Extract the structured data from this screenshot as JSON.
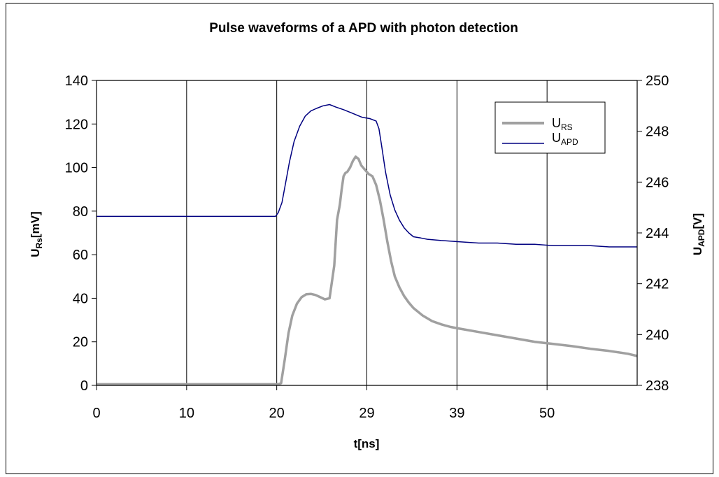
{
  "chart_data": {
    "type": "line",
    "title": "Pulse waveforms of a APD with photon detection",
    "xlabel": {
      "main": "t[ns]"
    },
    "ylabel_left": {
      "main": "U",
      "sub": "Rs",
      "tail": "[mV]"
    },
    "ylabel_right": {
      "main": "U",
      "sub": "APD",
      "tail": "[V]"
    },
    "x_range": [
      0,
      58
    ],
    "x_tick_labels": [
      "0",
      "10",
      "20",
      "29",
      "39",
      "50"
    ],
    "y_left_range": [
      0,
      140
    ],
    "y_left_ticks": [
      0,
      20,
      40,
      60,
      80,
      100,
      120,
      140
    ],
    "y_right_range": [
      238,
      250
    ],
    "y_right_ticks": [
      238,
      240,
      242,
      244,
      246,
      248,
      250
    ],
    "grid": "vertical",
    "legend_position": "top-right",
    "series": [
      {
        "name_main": "U",
        "name_sub": "RS",
        "axis": "left",
        "color": "#a0a0a0",
        "x": [
          0,
          19.5,
          19.8,
          20.2,
          20.6,
          21.0,
          21.5,
          22.0,
          22.5,
          23.0,
          23.5,
          24.0,
          24.5,
          25.0,
          25.5,
          25.8,
          26.1,
          26.3,
          26.5,
          26.7,
          26.9,
          27.2,
          27.5,
          27.8,
          28.1,
          28.4,
          28.8,
          29.2,
          29.6,
          30.0,
          30.4,
          30.8,
          31.2,
          31.6,
          32.0,
          32.5,
          33.0,
          33.5,
          34.0,
          35.0,
          36.0,
          37.0,
          38.0,
          39.0,
          41.0,
          43.0,
          45.0,
          47.0,
          49.0,
          51.0,
          53.0,
          55.0,
          57.0,
          58.0
        ],
        "y": [
          0.5,
          0.5,
          1.0,
          12.0,
          24.0,
          32.0,
          37.5,
          40.5,
          41.8,
          42.0,
          41.5,
          40.5,
          39.5,
          40.0,
          55.0,
          76.0,
          83.0,
          90.0,
          96.0,
          97.5,
          98.0,
          100.0,
          103.0,
          105.0,
          104.0,
          101.0,
          99.0,
          97.0,
          96.0,
          92.0,
          85.0,
          76.0,
          66.0,
          57.0,
          50.0,
          45.0,
          41.0,
          38.0,
          35.5,
          32.0,
          29.5,
          28.0,
          26.8,
          26.0,
          24.5,
          23.0,
          21.5,
          20.0,
          19.0,
          18.0,
          16.8,
          15.8,
          14.5,
          13.5
        ]
      },
      {
        "name_main": "U",
        "name_sub": "APD",
        "axis": "right",
        "color": "#000080",
        "x": [
          0,
          19.2,
          19.5,
          19.9,
          20.3,
          20.7,
          21.2,
          21.8,
          22.4,
          23.0,
          23.6,
          24.3,
          25.0,
          25.7,
          26.5,
          27.5,
          28.5,
          29.3,
          30.0,
          30.3,
          30.6,
          31.0,
          31.5,
          32.0,
          32.5,
          33.0,
          33.5,
          34.0,
          34.8,
          35.5,
          37.0,
          39.0,
          41.0,
          43.0,
          45.0,
          47.0,
          49.0,
          51.0,
          53.0,
          55.0,
          58.0
        ],
        "y": [
          244.65,
          244.65,
          244.8,
          245.2,
          246.0,
          246.8,
          247.6,
          248.2,
          248.6,
          248.8,
          248.9,
          249.0,
          249.05,
          248.95,
          248.85,
          248.7,
          248.55,
          248.5,
          248.4,
          248.1,
          247.4,
          246.4,
          245.5,
          244.9,
          244.5,
          244.2,
          244.0,
          243.85,
          243.8,
          243.75,
          243.7,
          243.65,
          243.6,
          243.6,
          243.55,
          243.55,
          243.5,
          243.5,
          243.5,
          243.45,
          243.45
        ]
      }
    ]
  }
}
